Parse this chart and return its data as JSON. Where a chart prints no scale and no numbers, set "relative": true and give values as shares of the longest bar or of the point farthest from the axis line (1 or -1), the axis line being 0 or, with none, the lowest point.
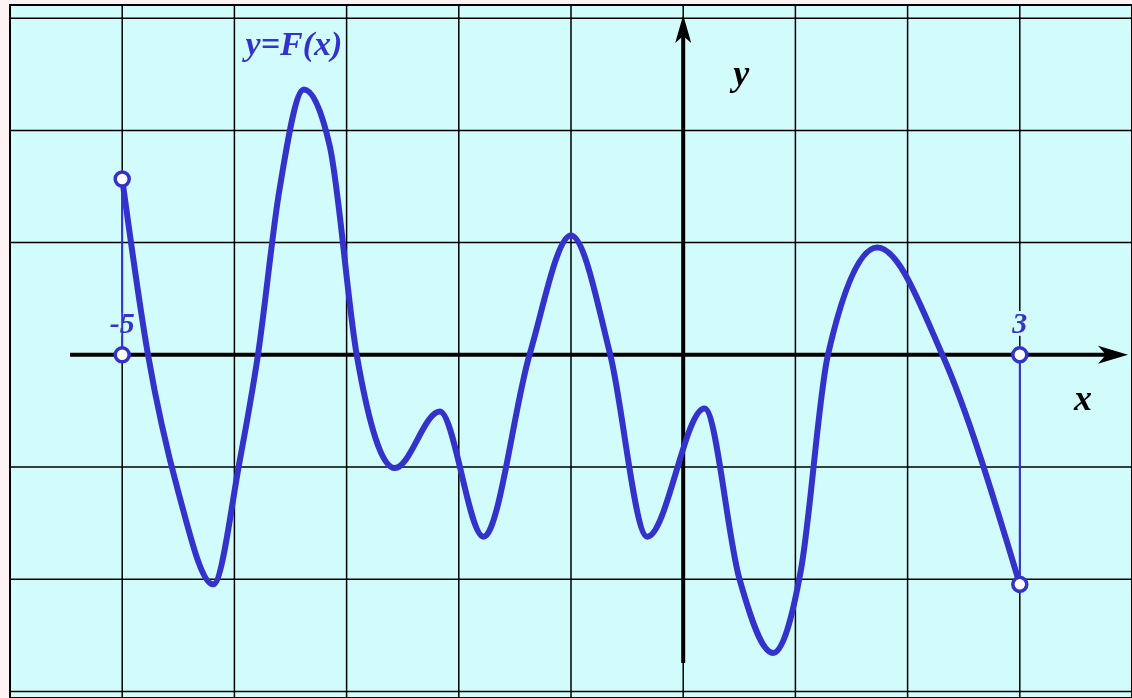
{
  "chart_data": {
    "type": "line",
    "relative": true,
    "xlabel": "x",
    "ylabel": "y",
    "xlim": [
      -6,
      4
    ],
    "xticks": [
      {
        "value": -5,
        "label": "-5"
      },
      {
        "value": -4,
        "label": null
      },
      {
        "value": -3,
        "label": null
      },
      {
        "value": -2,
        "label": null
      },
      {
        "value": -1,
        "label": null
      },
      {
        "value": 0,
        "label": null
      },
      {
        "value": 1,
        "label": null
      },
      {
        "value": 2,
        "label": null
      },
      {
        "value": 3,
        "label": "3"
      }
    ],
    "grid": true,
    "series": [
      {
        "name": "y=F(x)",
        "color": "#3333cc",
        "x": [
          -5,
          -4.77,
          -4.5,
          -4.19,
          -3.95,
          -3.79,
          -3.6,
          -3.38,
          -3.15,
          -2.91,
          -2.57,
          -2.17,
          -1.78,
          -1.37,
          -1,
          -0.65,
          -0.32,
          0.19,
          0.5,
          0.8,
          1.05,
          1.29,
          1.73,
          2.31,
          3
        ],
        "values": [
          0.59,
          0,
          -0.46,
          -0.77,
          -0.35,
          0,
          0.55,
          0.89,
          0.7,
          0,
          -0.38,
          -0.19,
          -0.61,
          0,
          0.4,
          0,
          -0.61,
          -0.18,
          -0.75,
          -1,
          -0.72,
          0,
          0.36,
          0,
          -0.77
        ]
      }
    ]
  }
}
